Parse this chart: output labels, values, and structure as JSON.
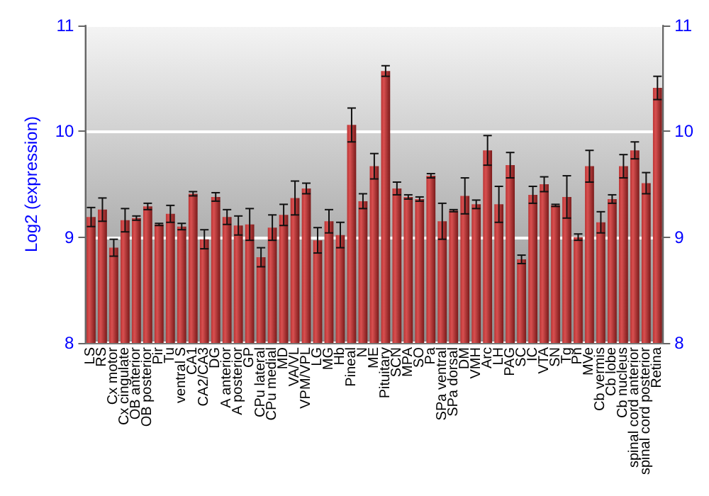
{
  "chart_data": {
    "type": "bar",
    "ylabel": "Log2 (expression)",
    "categories": [
      "LS",
      "RS",
      "Cx motor",
      "Cx cingulate",
      "OB anterior",
      "OB posterior",
      "Pir",
      "Tu",
      "ventral S",
      "CA1",
      "CA2/CA3",
      "DG",
      "A anterior",
      "A posterior",
      "GP",
      "CPu lateral",
      "CPu medial",
      "MD",
      "VA/VL",
      "VPM/VPL",
      "LG",
      "MG",
      "Hb",
      "Pineal",
      "N",
      "ME",
      "Pituitary",
      "SCN",
      "MPA",
      "SO",
      "Pa",
      "SPa ventral",
      "SPa dorsal",
      "DM",
      "VMH",
      "Arc",
      "LH",
      "PAG",
      "SC",
      "IC",
      "VTA",
      "SN",
      "Tg",
      "Pn",
      "MVe",
      "Cb vermis",
      "Cb lobe",
      "Cb nucleus",
      "spinal cord anterior",
      "spinal cord posterior",
      "Retina"
    ],
    "values": [
      9.19,
      9.26,
      8.9,
      9.16,
      9.18,
      9.29,
      9.12,
      9.22,
      9.1,
      9.41,
      8.98,
      9.38,
      9.19,
      9.11,
      9.12,
      8.81,
      9.09,
      9.21,
      9.37,
      9.46,
      8.97,
      9.15,
      9.02,
      10.06,
      9.34,
      9.67,
      10.57,
      9.46,
      9.38,
      9.36,
      9.58,
      9.15,
      9.25,
      9.39,
      9.31,
      9.82,
      9.31,
      9.68,
      8.79,
      9.4,
      9.5,
      9.3,
      9.38,
      9.0,
      9.67,
      9.14,
      9.36,
      9.67,
      9.82,
      9.51,
      10.41
    ],
    "errors": [
      0.09,
      0.11,
      0.08,
      0.11,
      0.02,
      0.03,
      0.01,
      0.08,
      0.03,
      0.02,
      0.09,
      0.04,
      0.07,
      0.09,
      0.15,
      0.09,
      0.12,
      0.1,
      0.16,
      0.05,
      0.12,
      0.11,
      0.12,
      0.16,
      0.07,
      0.12,
      0.05,
      0.06,
      0.02,
      0.02,
      0.02,
      0.17,
      0.01,
      0.17,
      0.04,
      0.14,
      0.17,
      0.12,
      0.04,
      0.08,
      0.07,
      0.01,
      0.2,
      0.03,
      0.15,
      0.1,
      0.04,
      0.11,
      0.08,
      0.1,
      0.11
    ],
    "color": "#bb3333",
    "ylim": [
      8,
      11
    ],
    "yticks": [
      8,
      9,
      10,
      11
    ],
    "y2lim": [
      8,
      11
    ],
    "y2ticks": [
      8,
      9,
      10,
      11
    ],
    "grid": "y"
  }
}
